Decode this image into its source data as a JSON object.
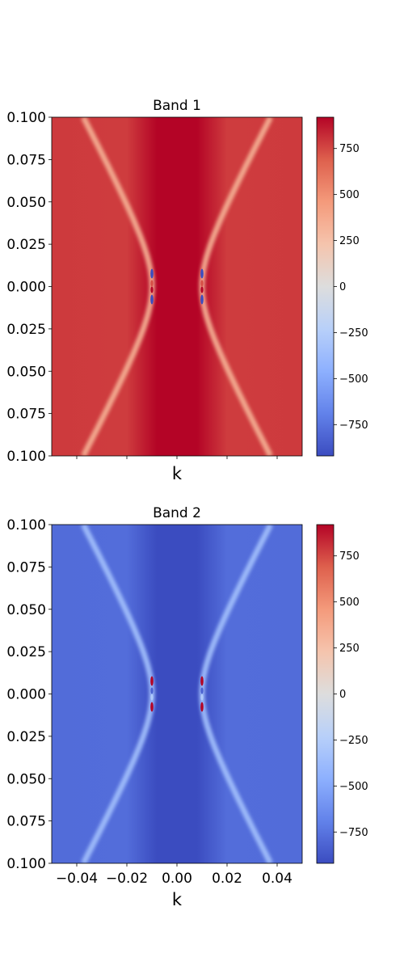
{
  "chart_data": [
    {
      "type": "heatmap",
      "title": "Band 1",
      "xlabel": "k",
      "ylabel": "",
      "xlim": [
        -0.05,
        0.05
      ],
      "ylim": [
        -0.1,
        0.1
      ],
      "y_tick_labels": [
        "0.100",
        "0.075",
        "0.050",
        "0.025",
        "0.000",
        "0.025",
        "0.050",
        "0.075",
        "0.100"
      ],
      "x_tick_labels": [],
      "x_tick_values": [
        -0.04,
        -0.02,
        0.0,
        0.02,
        0.04
      ],
      "colorbar": {
        "min": -920,
        "max": 920,
        "ticks": [
          750,
          500,
          250,
          0,
          -250,
          -500,
          -750
        ],
        "tick_labels": [
          "750",
          "500",
          "250",
          "0",
          "−250",
          "−500",
          "−750"
        ],
        "colormap": "coolwarm"
      },
      "background_value": 780,
      "center_value": 920,
      "feature_value": 350,
      "singularity_k": [
        -0.01,
        0.01
      ],
      "grid": false
    },
    {
      "type": "heatmap",
      "title": "Band 2",
      "xlabel": "k",
      "ylabel": "",
      "xlim": [
        -0.05,
        0.05
      ],
      "ylim": [
        -0.1,
        0.1
      ],
      "y_tick_labels": [
        "0.100",
        "0.075",
        "0.050",
        "0.025",
        "0.000",
        "0.025",
        "0.050",
        "0.075",
        "0.100"
      ],
      "x_tick_labels": [
        "−0.04",
        "−0.02",
        "0.00",
        "0.02",
        "0.04"
      ],
      "x_tick_values": [
        -0.04,
        -0.02,
        0.0,
        0.02,
        0.04
      ],
      "colorbar": {
        "min": -920,
        "max": 920,
        "ticks": [
          750,
          500,
          250,
          0,
          -250,
          -500,
          -750
        ],
        "tick_labels": [
          "750",
          "500",
          "250",
          "0",
          "−250",
          "−500",
          "−750"
        ],
        "colormap": "coolwarm"
      },
      "background_value": -780,
      "center_value": -920,
      "feature_value": -350,
      "singularity_k": [
        -0.01,
        0.01
      ],
      "grid": false
    }
  ]
}
